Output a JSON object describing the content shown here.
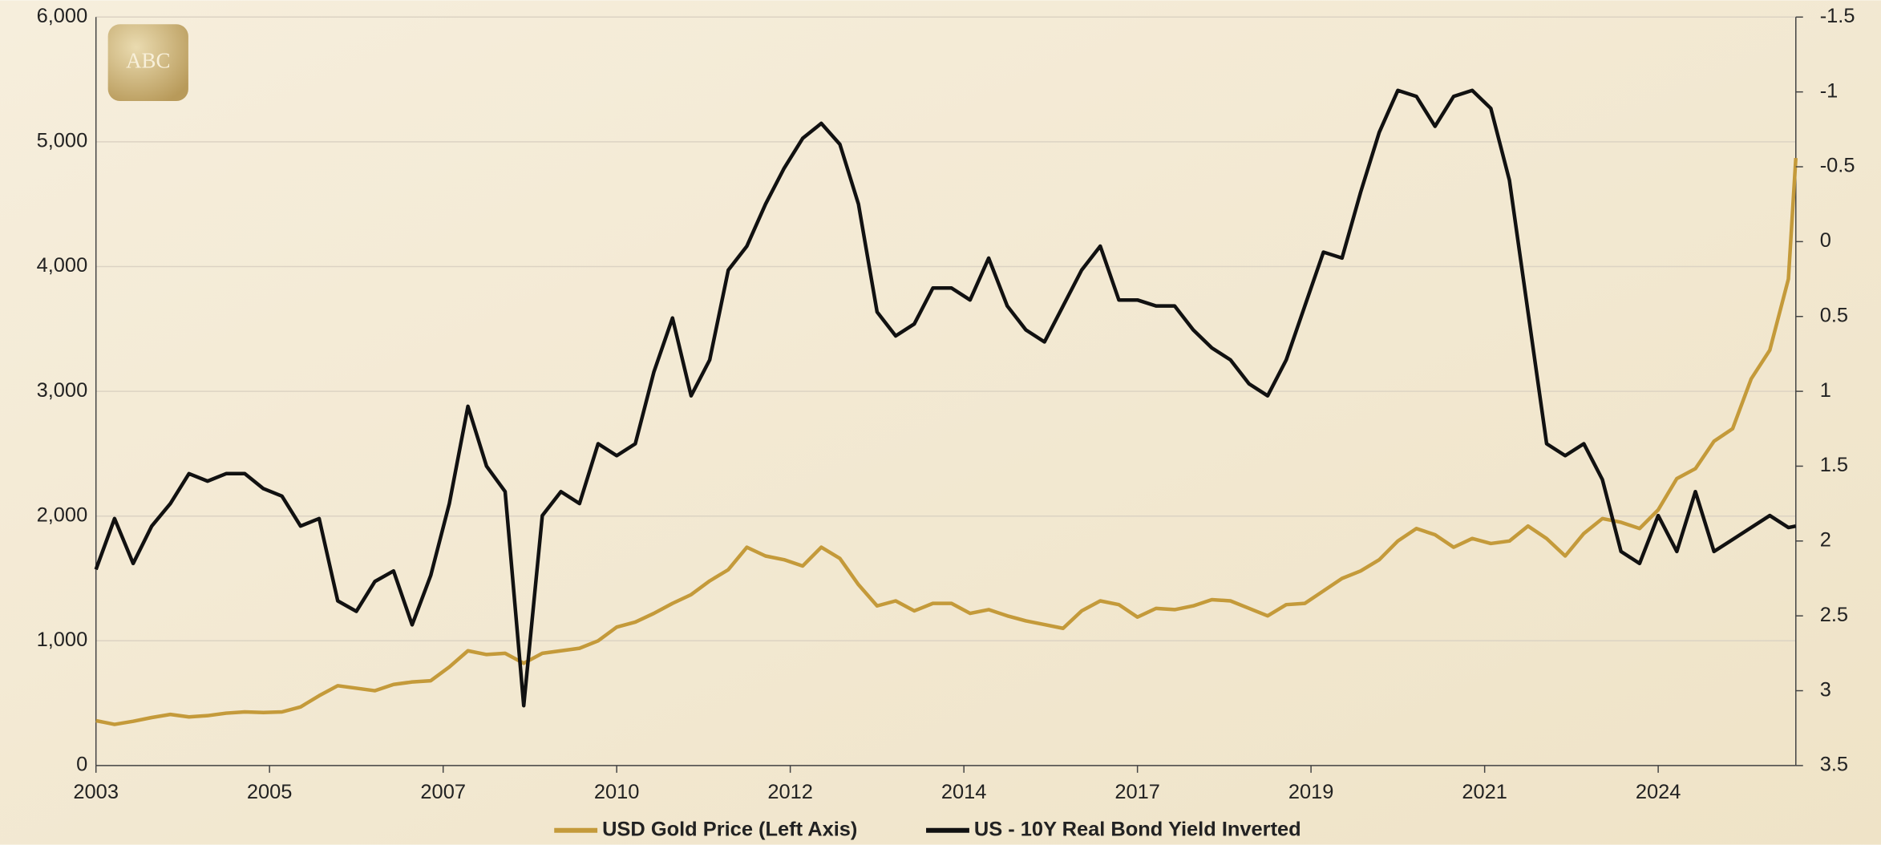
{
  "chart_data": {
    "type": "line",
    "logo_text": "ABC",
    "x": [
      2003,
      2003.25,
      2003.5,
      2003.75,
      2004,
      2004.25,
      2004.5,
      2004.75,
      2005,
      2005.25,
      2005.5,
      2005.75,
      2006,
      2006.25,
      2006.5,
      2006.75,
      2007,
      2007.25,
      2007.5,
      2007.75,
      2008,
      2008.25,
      2008.5,
      2008.75,
      2009,
      2009.25,
      2009.5,
      2009.75,
      2010,
      2010.25,
      2010.5,
      2010.75,
      2011,
      2011.25,
      2011.5,
      2011.75,
      2012,
      2012.25,
      2012.5,
      2012.75,
      2013,
      2013.25,
      2013.5,
      2013.75,
      2014,
      2014.25,
      2014.5,
      2014.75,
      2015,
      2015.25,
      2015.5,
      2015.75,
      2016,
      2016.25,
      2016.5,
      2016.75,
      2017,
      2017.25,
      2017.5,
      2017.75,
      2018,
      2018.25,
      2018.5,
      2018.75,
      2019,
      2019.25,
      2019.5,
      2019.75,
      2020,
      2020.25,
      2020.5,
      2020.75,
      2021,
      2021.25,
      2021.5,
      2021.75,
      2022,
      2022.25,
      2022.5,
      2022.75,
      2023,
      2023.25,
      2023.5,
      2023.75,
      2024,
      2024.25,
      2024.5,
      2024.75,
      2025,
      2025.25,
      2025.5,
      2025.75,
      2025.85
    ],
    "series": [
      {
        "name": "USD Gold Price (Left Axis)",
        "color": "#c49a3a",
        "axis": "y",
        "values": [
          360,
          330,
          355,
          385,
          410,
          390,
          400,
          420,
          430,
          425,
          430,
          470,
          560,
          640,
          620,
          600,
          650,
          670,
          680,
          790,
          920,
          890,
          900,
          820,
          900,
          920,
          940,
          1000,
          1110,
          1150,
          1220,
          1300,
          1370,
          1480,
          1570,
          1750,
          1680,
          1650,
          1600,
          1750,
          1660,
          1450,
          1280,
          1320,
          1240,
          1300,
          1300,
          1220,
          1250,
          1200,
          1160,
          1130,
          1100,
          1240,
          1320,
          1290,
          1190,
          1260,
          1250,
          1280,
          1330,
          1320,
          1260,
          1200,
          1290,
          1300,
          1400,
          1500,
          1560,
          1650,
          1800,
          1900,
          1850,
          1750,
          1820,
          1780,
          1800,
          1920,
          1820,
          1680,
          1860,
          1980,
          1950,
          1900,
          2050,
          2300,
          2380,
          2600,
          2700,
          3100,
          3330,
          3900,
          4870
        ]
      },
      {
        "name": "US - 10Y Real Bond Yield Inverted",
        "color": "#111111",
        "axis": "y2",
        "values": [
          2.19,
          1.85,
          2.15,
          1.9,
          1.75,
          1.55,
          1.6,
          1.55,
          1.55,
          1.65,
          1.7,
          1.9,
          1.85,
          2.4,
          2.47,
          2.27,
          2.2,
          2.56,
          2.23,
          1.75,
          1.1,
          1.5,
          1.67,
          3.1,
          1.83,
          1.67,
          1.75,
          1.35,
          1.43,
          1.35,
          0.87,
          0.51,
          1.03,
          0.79,
          0.19,
          0.03,
          -0.25,
          -0.49,
          -0.69,
          -0.79,
          -0.65,
          -0.25,
          0.47,
          0.63,
          0.55,
          0.31,
          0.31,
          0.39,
          0.11,
          0.43,
          0.59,
          0.67,
          0.43,
          0.19,
          0.03,
          0.39,
          0.39,
          0.43,
          0.43,
          0.59,
          0.71,
          0.79,
          0.95,
          1.03,
          0.79,
          0.43,
          0.07,
          0.11,
          -0.33,
          -0.73,
          -1.01,
          -0.97,
          -0.77,
          -0.97,
          -1.01,
          -0.89,
          -0.41,
          0.47,
          1.35,
          1.43,
          1.35,
          1.59,
          2.07,
          2.15,
          1.83,
          2.07,
          1.67,
          2.07,
          1.99,
          1.91,
          1.83,
          1.91,
          1.9
        ]
      }
    ],
    "xlim": [
      2003,
      2025.85
    ],
    "xticks": [
      2003,
      {
        "value": 2005.333,
        "label": "2005"
      },
      {
        "value": 2007.667,
        "label": "2007"
      },
      2010,
      {
        "value": 2012.333,
        "label": "2012"
      },
      {
        "value": 2014.667,
        "label": "2014"
      },
      2017,
      {
        "value": 2019.333,
        "label": "2019"
      },
      {
        "value": 2021.667,
        "label": "2021"
      },
      2024
    ],
    "ylim": [
      0,
      6000
    ],
    "yticks": [
      0,
      {
        "value": 1000,
        "label": "1,000"
      },
      {
        "value": 2000,
        "label": "2,000"
      },
      {
        "value": 3000,
        "label": "3,000"
      },
      {
        "value": 4000,
        "label": "4,000"
      },
      {
        "value": 5000,
        "label": "5,000"
      },
      {
        "value": 6000,
        "label": "6,000"
      }
    ],
    "y2lim": [
      3.5,
      -1.5
    ],
    "y2ticks": [
      3.5,
      3,
      2.5,
      2,
      1.5,
      1,
      0.5,
      0,
      -0.5,
      -1,
      -1.5
    ],
    "grid": true,
    "legend": "bottom"
  }
}
